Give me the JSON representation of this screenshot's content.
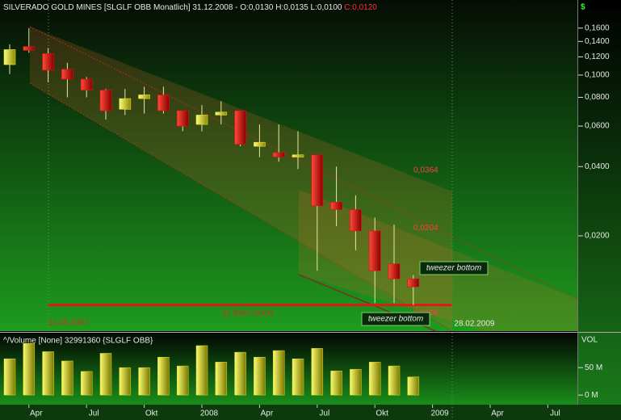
{
  "chart_data": {
    "type": "candlestick",
    "title": "SILVERADO GOLD MINES [SLGLF OBB  Monatlich] 31.12.2008 - O:0,0130 H:0,0135 L:0,0100",
    "title_close": "C:0,0120",
    "currency": "$",
    "log_scale": true,
    "ylim": [
      0.0077,
      0.212
    ],
    "yticks": [
      {
        "value": 0.16,
        "label": "0,1600"
      },
      {
        "value": 0.14,
        "label": "0,1400"
      },
      {
        "value": 0.12,
        "label": "0,1200"
      },
      {
        "value": 0.1,
        "label": "0,1000"
      },
      {
        "value": 0.08,
        "label": "0,0800"
      },
      {
        "value": 0.06,
        "label": "0,0600"
      },
      {
        "value": 0.04,
        "label": "0,0400"
      },
      {
        "value": 0.02,
        "label": "0,0200"
      }
    ],
    "categories": [
      null,
      "Apr",
      null,
      null,
      "Jul",
      null,
      null,
      "Okt",
      null,
      null,
      "2008",
      null,
      null,
      "Apr",
      null,
      null,
      "Jul",
      null,
      null,
      "Okt",
      null,
      null,
      "2009",
      null,
      null,
      "Apr",
      null,
      null,
      "Jul",
      null
    ],
    "open": [
      0.111,
      0.133,
      0.124,
      0.106,
      0.096,
      0.086,
      0.071,
      0.079,
      0.082,
      0.07,
      0.061,
      0.067,
      0.07,
      0.049,
      0.046,
      0.044,
      0.045,
      0.028,
      0.026,
      0.021,
      0.0151,
      0.013,
      null,
      null,
      null,
      null,
      null,
      null,
      null,
      null
    ],
    "high": [
      0.136,
      0.16,
      0.131,
      0.113,
      0.098,
      0.087,
      0.087,
      0.089,
      0.089,
      0.07,
      0.074,
      0.077,
      0.07,
      0.061,
      0.061,
      0.057,
      0.045,
      0.04,
      0.03,
      0.024,
      0.0224,
      0.0135,
      null,
      null,
      null,
      null,
      null,
      null,
      null,
      null
    ],
    "low": [
      0.101,
      0.125,
      0.093,
      0.08,
      0.08,
      0.064,
      0.067,
      0.068,
      0.068,
      0.057,
      0.057,
      0.061,
      0.049,
      0.044,
      0.042,
      0.039,
      0.0141,
      0.022,
      0.0173,
      0.0102,
      0.0102,
      0.01,
      null,
      null,
      null,
      null,
      null,
      null,
      null,
      null
    ],
    "close": [
      0.129,
      0.128,
      0.105,
      0.096,
      0.086,
      0.07,
      0.079,
      0.082,
      0.07,
      0.06,
      0.067,
      0.069,
      0.05,
      0.051,
      0.044,
      0.045,
      0.027,
      0.026,
      0.021,
      0.0141,
      0.013,
      0.012,
      null,
      null,
      null,
      null,
      null,
      null,
      null,
      null
    ],
    "up_color": "#e8e020",
    "down_color": "#e01010",
    "annotations": [
      {
        "value": 0.0364,
        "label": "0,0364"
      },
      {
        "value": 0.0204,
        "label": "0,0204"
      },
      {
        "value": 0.01,
        "label": "0,0100"
      }
    ],
    "range_start": "31.05.2007",
    "range_end": "28.02.2009",
    "range_bars": "21 Bars (cont)",
    "patterns": [
      "tweezer bottom",
      "tweezer bottom"
    ],
    "volume": {
      "title": "^/Volume [None] 32991360 {SLGLF OBB}",
      "label": "VOL",
      "color": "#e0e020",
      "ylim": [
        -16,
        112
      ],
      "yticks": [
        {
          "value": 50,
          "label": "50 M"
        },
        {
          "value": 0,
          "label": "0 M"
        }
      ],
      "values": [
        66,
        94,
        79,
        62,
        43,
        76,
        50,
        50,
        69,
        53,
        90,
        60,
        78,
        69,
        81,
        66,
        85,
        44,
        47,
        60,
        53,
        32.99136,
        null,
        null,
        null,
        null,
        null,
        null,
        null,
        null
      ]
    }
  }
}
